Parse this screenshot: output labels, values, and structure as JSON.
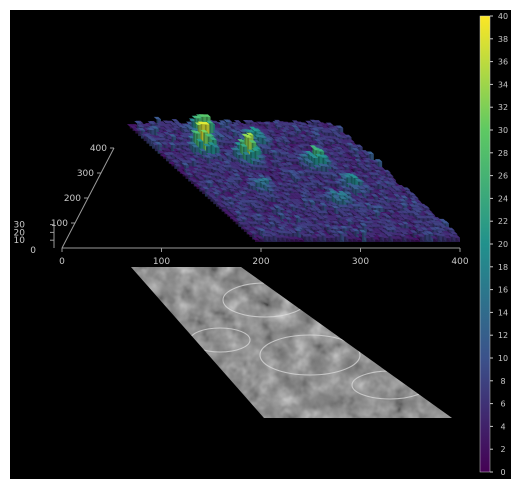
{
  "chart_data": {
    "type": "heatmap",
    "title": "",
    "xlabel": "",
    "ylabel": "",
    "zlabel": "",
    "xlim": [
      0,
      400
    ],
    "ylim": [
      0,
      400
    ],
    "zlim": [
      0,
      40
    ],
    "x_ticks": [
      0,
      100,
      200,
      300,
      400
    ],
    "y_ticks": [
      100,
      200,
      300,
      400
    ],
    "z_ticks": [
      10,
      20,
      30
    ],
    "colorbar": {
      "range": [
        0,
        40
      ],
      "ticks": [
        0,
        2,
        4,
        6,
        8,
        10,
        12,
        14,
        16,
        18,
        20,
        22,
        24,
        26,
        28,
        30,
        32,
        34,
        36,
        38,
        40
      ],
      "colormap": "viridis",
      "colors": [
        "#440154",
        "#3b528b",
        "#21918c",
        "#5ec962",
        "#fde725"
      ]
    },
    "background_color": "#000000",
    "baseline_value": 2,
    "surface_peaks": [
      {
        "x": 85,
        "y": 300,
        "value": 38
      },
      {
        "x": 155,
        "y": 270,
        "value": 36
      },
      {
        "x": 118,
        "y": 355,
        "value": 30
      },
      {
        "x": 275,
        "y": 250,
        "value": 26
      },
      {
        "x": 205,
        "y": 330,
        "value": 22
      },
      {
        "x": 300,
        "y": 180,
        "value": 16
      },
      {
        "x": 240,
        "y": 120,
        "value": 14
      },
      {
        "x": 120,
        "y": 170,
        "value": 12
      }
    ],
    "projection": "grayscale texture of the same surface shown below the 3D view"
  }
}
